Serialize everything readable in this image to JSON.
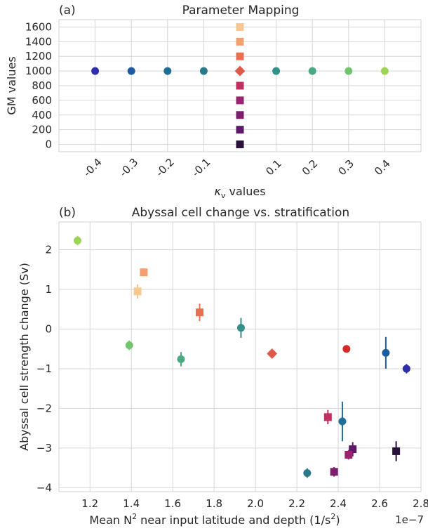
{
  "chart_data": [
    {
      "type": "scatter",
      "panel_label": "(a)",
      "title": "Parameter Mapping",
      "xlabel_main": "κ",
      "xlabel_sub": "v",
      "xlabel_rest": " values",
      "ylabel": "GM values",
      "xlim": [
        -0.5,
        0.5
      ],
      "ylim": [
        -100,
        1700
      ],
      "xticks": [
        -0.4,
        -0.3,
        -0.2,
        -0.1,
        0.1,
        0.2,
        0.3,
        0.4
      ],
      "xtick_labels": [
        "-0.4",
        "-0.3",
        "-0.2",
        "-0.1",
        "0.1",
        "0.2",
        "0.3",
        "0.4"
      ],
      "yticks": [
        0,
        200,
        400,
        600,
        800,
        1000,
        1200,
        1400,
        1600
      ],
      "ytick_labels": [
        "0",
        "200",
        "400",
        "600",
        "800",
        "1000",
        "1200",
        "1400",
        "1600"
      ],
      "grid": true,
      "series": [
        {
          "marker": "circle",
          "points": [
            {
              "x": -0.4,
              "y": 1000,
              "color": "#2e2ea8"
            },
            {
              "x": -0.3,
              "y": 1000,
              "color": "#1d5aa0"
            },
            {
              "x": -0.2,
              "y": 1000,
              "color": "#1f6e96"
            },
            {
              "x": -0.1,
              "y": 1000,
              "color": "#2a7a8a"
            },
            {
              "x": 0.1,
              "y": 1000,
              "color": "#33918a"
            },
            {
              "x": 0.2,
              "y": 1000,
              "color": "#4aa982"
            },
            {
              "x": 0.3,
              "y": 1000,
              "color": "#72c46e"
            },
            {
              "x": 0.4,
              "y": 1000,
              "color": "#9cd456"
            }
          ]
        },
        {
          "marker": "square",
          "points": [
            {
              "x": 0,
              "y": 0,
              "color": "#2a1238"
            },
            {
              "x": 0,
              "y": 200,
              "color": "#5e1a68"
            },
            {
              "x": 0,
              "y": 400,
              "color": "#7b1f6e"
            },
            {
              "x": 0,
              "y": 600,
              "color": "#9a2470"
            },
            {
              "x": 0,
              "y": 800,
              "color": "#bf3060"
            },
            {
              "x": 0,
              "y": 1200,
              "color": "#ea6f50"
            },
            {
              "x": 0,
              "y": 1400,
              "color": "#f3a070"
            },
            {
              "x": 0,
              "y": 1600,
              "color": "#f8c890"
            }
          ]
        },
        {
          "marker": "diamond",
          "points": [
            {
              "x": 0,
              "y": 1000,
              "color": "#e05a4a"
            }
          ]
        }
      ]
    },
    {
      "type": "scatter",
      "panel_label": "(b)",
      "title": "Abyssal cell change vs. stratification",
      "xlabel_main": "Mean N",
      "xlabel_sup": "2",
      "xlabel_mid": " near input latitude and depth (1/s",
      "xlabel_sup2": "2",
      "xlabel_end": ")",
      "x_offset_label": "1e−7",
      "ylabel": "Abyssal cell strength change (Sv)",
      "xlim": [
        1.05,
        2.8
      ],
      "ylim": [
        -4.1,
        2.7
      ],
      "xticks": [
        1.2,
        1.4,
        1.6,
        1.8,
        2.0,
        2.2,
        2.4,
        2.6,
        2.8
      ],
      "xtick_labels": [
        "1.2",
        "1.4",
        "1.6",
        "1.8",
        "2.0",
        "2.2",
        "2.4",
        "2.6",
        "2.8"
      ],
      "yticks": [
        -4,
        -3,
        -2,
        -1,
        0,
        1,
        2
      ],
      "ytick_labels": [
        "−4",
        "−3",
        "−2",
        "−1",
        "0",
        "1",
        "2"
      ],
      "grid": true,
      "points": [
        {
          "x": 2.73,
          "y": -1.0,
          "err": 0.12,
          "marker": "circle",
          "color": "#2e2ea8"
        },
        {
          "x": 2.63,
          "y": -0.6,
          "err": 0.4,
          "marker": "circle",
          "color": "#1d5aa0"
        },
        {
          "x": 2.42,
          "y": -2.33,
          "err": 0.5,
          "marker": "circle",
          "color": "#1f6e96"
        },
        {
          "x": 2.25,
          "y": -3.63,
          "err": 0.12,
          "marker": "circle",
          "color": "#2a7a8a"
        },
        {
          "x": 1.93,
          "y": 0.03,
          "err": 0.25,
          "marker": "circle",
          "color": "#33918a"
        },
        {
          "x": 1.64,
          "y": -0.76,
          "err": 0.18,
          "marker": "circle",
          "color": "#4aa982"
        },
        {
          "x": 1.39,
          "y": -0.41,
          "err": 0.12,
          "marker": "circle",
          "color": "#72c46e"
        },
        {
          "x": 1.14,
          "y": 2.23,
          "err": 0.12,
          "marker": "circle",
          "color": "#9cd456"
        },
        {
          "x": 2.08,
          "y": -0.62,
          "err": 0.1,
          "marker": "diamond",
          "color": "#e05a4a"
        },
        {
          "x": 2.44,
          "y": -0.5,
          "err": 0.06,
          "marker": "circle",
          "color": "#d42a2a"
        },
        {
          "x": 2.68,
          "y": -3.08,
          "err": 0.25,
          "marker": "square",
          "color": "#2a1238"
        },
        {
          "x": 2.47,
          "y": -3.03,
          "err": 0.18,
          "marker": "square",
          "color": "#5e1a68"
        },
        {
          "x": 2.38,
          "y": -3.6,
          "err": 0.12,
          "marker": "square",
          "color": "#7b1f6e"
        },
        {
          "x": 2.45,
          "y": -3.17,
          "err": 0.12,
          "marker": "square",
          "color": "#9a2470"
        },
        {
          "x": 2.35,
          "y": -2.22,
          "err": 0.18,
          "marker": "square",
          "color": "#bf3060"
        },
        {
          "x": 1.73,
          "y": 0.42,
          "err": 0.22,
          "marker": "square",
          "color": "#ea6f50"
        },
        {
          "x": 1.46,
          "y": 1.43,
          "err": 0.1,
          "marker": "square",
          "color": "#f3a070"
        },
        {
          "x": 1.43,
          "y": 0.95,
          "err": 0.18,
          "marker": "square",
          "color": "#f8c890"
        }
      ]
    }
  ]
}
